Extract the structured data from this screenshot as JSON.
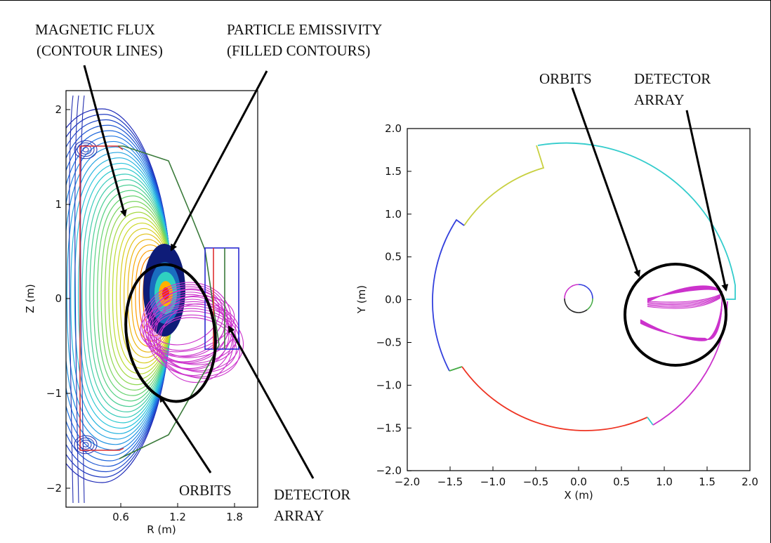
{
  "annotations": {
    "magnetic_flux_1": "MAGNETIC FLUX",
    "magnetic_flux_2": "(CONTOUR LINES)",
    "particle_emissivity_1": "PARTICLE EMISSIVITY",
    "particle_emissivity_2": "(FILLED CONTOURS)",
    "orbits_left": "ORBITS",
    "detector_left_1": "DETECTOR",
    "detector_left_2": "ARRAY",
    "orbits_right": "ORBITS",
    "detector_right_1": "DETECTOR",
    "detector_right_2": "ARRAY"
  },
  "left_plot": {
    "xlabel": "R (m)",
    "ylabel": "Z (m)",
    "xticks": [
      "0.6",
      "1.2",
      "1.8"
    ],
    "yticks": [
      "2",
      "1",
      "0",
      "−1",
      "−2"
    ]
  },
  "right_plot": {
    "xlabel": "X (m)",
    "ylabel": "Y (m)",
    "xticks": [
      "−2.0",
      "−1.5",
      "−1.0",
      "−0.5",
      "0.0",
      "0.5",
      "1.0",
      "1.5",
      "2.0"
    ],
    "yticks": [
      "2.0",
      "1.5",
      "1.0",
      "0.5",
      "0.0",
      "−0.5",
      "−1.0",
      "−1.5",
      "−2.0"
    ]
  },
  "colors": {
    "contour_low": "#1f2bb8",
    "contour_high": "#ff3000",
    "wall_red": "#e03030",
    "wall_green": "#3a7a3a",
    "orbit_magenta": "#cc33cc",
    "detector_blue": "#2a2ad0",
    "seg_cyan": "#33cccc",
    "seg_yellow": "#c8d040",
    "seg_blue": "#3340dd",
    "seg_red": "#ee3322",
    "seg_magenta": "#cc33cc",
    "seg_green": "#44aa44"
  }
}
